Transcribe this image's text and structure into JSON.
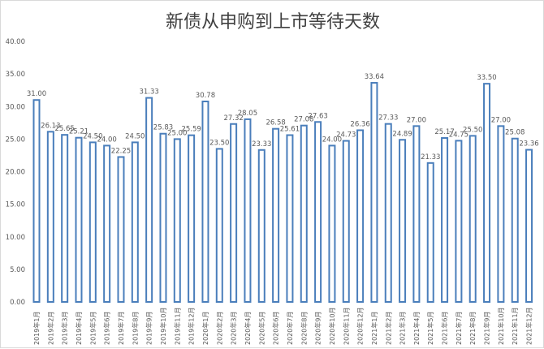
{
  "chart_data": {
    "type": "bar",
    "title": "新债从申购到上市等待天数",
    "xlabel": "",
    "ylabel": "",
    "ylim": [
      0,
      40
    ],
    "yticks": [
      "0.00",
      "5.00",
      "10.00",
      "15.00",
      "20.00",
      "25.00",
      "30.00",
      "35.00",
      "40.00"
    ],
    "grid": false,
    "categories": [
      "2019年1月",
      "2019年2月",
      "2019年3月",
      "2019年4月",
      "2019年5月",
      "2019年6月",
      "2019年7月",
      "2019年8月",
      "2019年9月",
      "2019年10月",
      "2019年11月",
      "2019年12月",
      "2020年1月",
      "2020年2月",
      "2020年3月",
      "2020年4月",
      "2020年5月",
      "2020年6月",
      "2020年7月",
      "2020年8月",
      "2020年9月",
      "2020年10月",
      "2020年11月",
      "2020年12月",
      "2021年1月",
      "2021年2月",
      "2021年3月",
      "2021年4月",
      "2021年5月",
      "2021年6月",
      "2021年7月",
      "2021年8月",
      "2021年9月",
      "2021年10月",
      "2021年11月",
      "2021年12月"
    ],
    "values": [
      31.0,
      26.13,
      25.65,
      25.21,
      24.5,
      24.0,
      22.25,
      24.5,
      31.33,
      25.83,
      25.0,
      25.59,
      30.78,
      23.5,
      27.32,
      28.05,
      23.33,
      26.58,
      25.61,
      27.08,
      27.63,
      24.0,
      24.73,
      26.36,
      33.64,
      27.33,
      24.89,
      27.0,
      21.33,
      25.17,
      24.75,
      25.5,
      33.5,
      27.0,
      25.08,
      23.36
    ],
    "bar_color": "#4a7ebb"
  }
}
